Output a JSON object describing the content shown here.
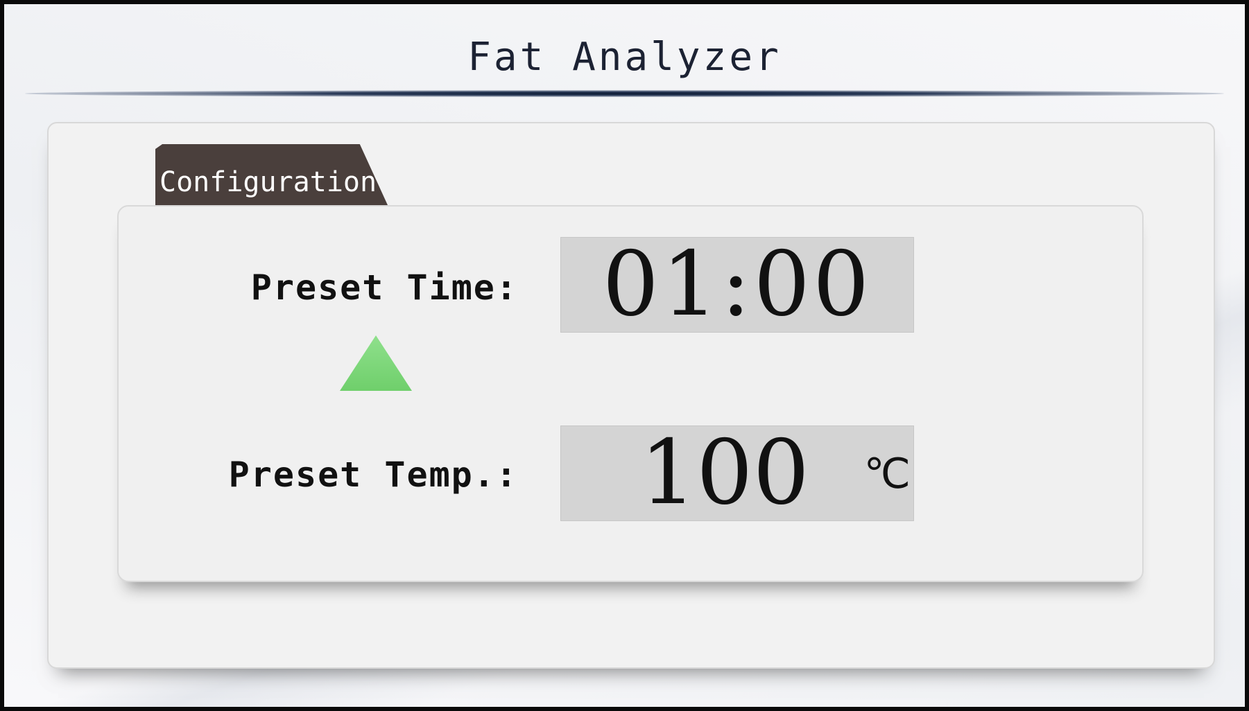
{
  "window": {
    "title": "Fat Analyzer"
  },
  "tabs": [
    {
      "label": "Configuration",
      "active": true
    }
  ],
  "configuration": {
    "preset_time": {
      "label": "Preset Time:",
      "value": "01:00"
    },
    "preset_temp": {
      "label": "Preset Temp.:",
      "value": "100",
      "unit": "℃"
    }
  },
  "controls": {
    "increase_icon": "triangle-up-icon"
  },
  "colors": {
    "tab_background": "#4a3f3c",
    "display_background": "#d4d4d4",
    "arrow_green": "#6fcf6b",
    "title_text": "#1c2233"
  }
}
